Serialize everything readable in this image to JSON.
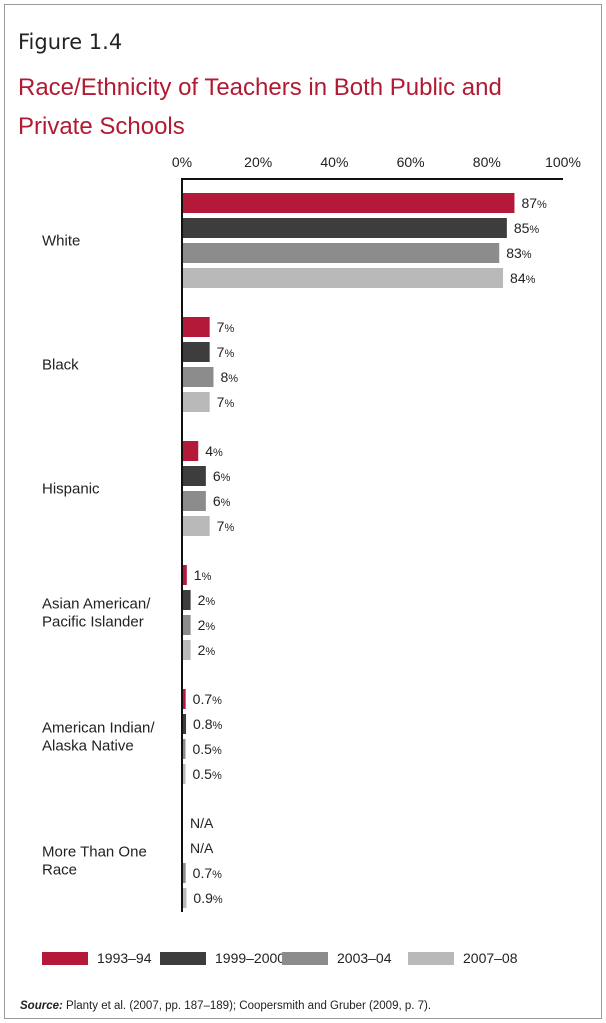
{
  "figure_label": "Figure 1.4",
  "source": {
    "label": "Source:",
    "text": "Planty et al. (2007, pp. 187–189); Coopersmith and Gruber (2009, p. 7)."
  },
  "colors": {
    "1993-94": "#b5193a",
    "1999-2000": "#3d3d3d",
    "2003-04": "#8c8c8c",
    "2007-08": "#b9b9b9"
  },
  "chart_data": {
    "type": "bar",
    "orientation": "horizontal",
    "title": "Race/Ethnicity of Teachers in Both Public and Private Schools",
    "xlim": [
      0,
      100
    ],
    "x_ticks": [
      "0%",
      "20%",
      "40%",
      "60%",
      "80%",
      "100%"
    ],
    "legend_position": "bottom",
    "categories": [
      [
        "White"
      ],
      [
        "Black"
      ],
      [
        "Hispanic"
      ],
      [
        "Asian American/",
        "Pacific Islander"
      ],
      [
        "American Indian/",
        "Alaska Native"
      ],
      [
        "More Than One",
        "Race"
      ]
    ],
    "series": [
      {
        "name": "1993–94",
        "values": [
          87,
          7,
          4,
          1,
          0.7,
          null
        ],
        "labels": [
          "87",
          "7",
          "4",
          "1",
          "0.7",
          "N/A"
        ]
      },
      {
        "name": "1999–2000",
        "values": [
          85,
          7,
          6,
          2,
          0.8,
          null
        ],
        "labels": [
          "85",
          "7",
          "6",
          "2",
          "0.8",
          "N/A"
        ]
      },
      {
        "name": "2003–04",
        "values": [
          83,
          8,
          6,
          2,
          0.5,
          0.7
        ],
        "labels": [
          "83",
          "8",
          "6",
          "2",
          "0.5",
          "0.7"
        ]
      },
      {
        "name": "2007–08",
        "values": [
          84,
          7,
          7,
          2,
          0.5,
          0.9
        ],
        "labels": [
          "84",
          "7",
          "7",
          "2",
          "0.5",
          "0.9"
        ]
      }
    ],
    "percent_sign": "%"
  }
}
